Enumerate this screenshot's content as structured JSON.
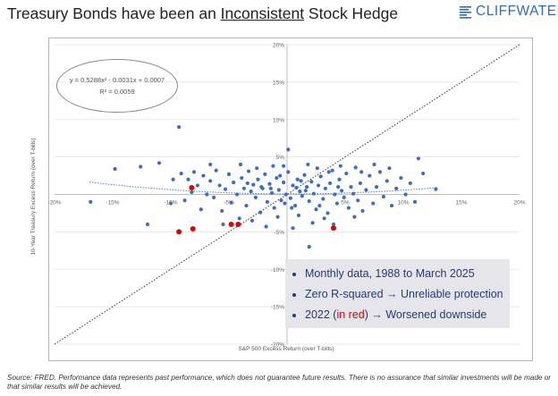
{
  "header": {
    "title_before": "Treasury Bonds have been an ",
    "title_underlined": "Inconsistent",
    "title_after": " Stock Hedge",
    "logo_text": "CLIFFWATER",
    "logo_color": "#2d6fb7"
  },
  "chart_data": {
    "type": "scatter",
    "title": "Treasury Bonds have been an Inconsistent Stock Hedge",
    "xlabel": "S&P 500 Excess Return (over T-bills)",
    "ylabel": "10-Year Treasury Excess Return (over T-bills)",
    "xlim": [
      -0.2,
      0.2
    ],
    "ylim": [
      -0.2,
      0.2
    ],
    "x_ticks": [
      -0.2,
      -0.15,
      -0.1,
      -0.05,
      0.05,
      0.1,
      0.15,
      0.2
    ],
    "x_tick_labels": [
      "-20%",
      "-15%",
      "-10%",
      "-5%",
      "5%",
      "10%",
      "15%",
      "20%"
    ],
    "y_ticks": [
      0.2,
      0.15,
      0.1,
      0.05,
      -0.05,
      -0.1,
      -0.15,
      -0.2
    ],
    "y_tick_labels": [
      "20%",
      "15%",
      "10%",
      "5%",
      "-5%",
      "-10%",
      "-15%",
      "-20%"
    ],
    "trendline": {
      "a": 0.5288,
      "b": -0.0031,
      "c": 0.0007
    },
    "equation": "y = 0.5288x² - 0.0031x + 0.0007",
    "r_squared_label": "R² = 0.0059",
    "series": [
      {
        "name": "Monthly data",
        "color": "#3b6dc4",
        "points": [
          [
            -0.169,
            -0.01
          ],
          [
            -0.148,
            0.034
          ],
          [
            -0.126,
            0.037
          ],
          [
            -0.11,
            0.042
          ],
          [
            -0.1,
            -0.012
          ],
          [
            -0.098,
            0.02
          ],
          [
            -0.093,
            0.09
          ],
          [
            -0.091,
            0.028
          ],
          [
            -0.088,
            -0.008
          ],
          [
            -0.085,
            0.02
          ],
          [
            -0.082,
            0.003
          ],
          [
            -0.08,
            0.03
          ],
          [
            -0.077,
            0.012
          ],
          [
            -0.074,
            -0.02
          ],
          [
            -0.072,
            0.025
          ],
          [
            -0.069,
            0.0
          ],
          [
            -0.066,
            0.018
          ],
          [
            -0.063,
            -0.004
          ],
          [
            -0.061,
            0.032
          ],
          [
            -0.058,
            0.012
          ],
          [
            -0.056,
            -0.022
          ],
          [
            -0.053,
            0.007
          ],
          [
            -0.05,
            0.027
          ],
          [
            -0.048,
            -0.011
          ],
          [
            -0.046,
            0.016
          ],
          [
            -0.043,
            0.0
          ],
          [
            -0.041,
            -0.032
          ],
          [
            -0.039,
            0.022
          ],
          [
            -0.037,
            0.008
          ],
          [
            -0.035,
            -0.015
          ],
          [
            -0.033,
            0.031
          ],
          [
            -0.031,
            0.004
          ],
          [
            -0.029,
            0.013
          ],
          [
            -0.027,
            -0.004
          ],
          [
            -0.025,
            0.02
          ],
          [
            -0.023,
            -0.024
          ],
          [
            -0.021,
            0.008
          ],
          [
            -0.019,
            0.027
          ],
          [
            -0.017,
            -0.01
          ],
          [
            -0.015,
            0.014
          ],
          [
            -0.013,
            0.002
          ],
          [
            -0.011,
            -0.018
          ],
          [
            -0.009,
            0.022
          ],
          [
            -0.007,
            0.006
          ],
          [
            -0.005,
            -0.008
          ],
          [
            -0.003,
            0.016
          ],
          [
            -0.001,
            0.0
          ],
          [
            0.001,
            0.03
          ],
          [
            0.003,
            -0.005
          ],
          [
            0.005,
            0.012
          ],
          [
            0.007,
            -0.015
          ],
          [
            0.009,
            0.02
          ],
          [
            0.011,
            0.004
          ],
          [
            0.013,
            -0.002
          ],
          [
            0.015,
            0.026
          ],
          [
            0.017,
            0.01
          ],
          [
            0.019,
            -0.009
          ],
          [
            0.021,
            0.017
          ],
          [
            0.023,
            0.001
          ],
          [
            0.025,
            -0.02
          ],
          [
            0.027,
            0.012
          ],
          [
            0.029,
            0.024
          ],
          [
            0.031,
            -0.006
          ],
          [
            0.033,
            0.008
          ],
          [
            0.035,
            -0.025
          ],
          [
            0.037,
            0.015
          ],
          [
            0.039,
            0.032
          ],
          [
            0.041,
            0.0
          ],
          [
            0.043,
            -0.012
          ],
          [
            0.045,
            0.02
          ],
          [
            0.047,
            0.005
          ],
          [
            0.049,
            -0.004
          ],
          [
            0.051,
            0.028
          ],
          [
            0.053,
            -0.018
          ],
          [
            0.055,
            0.01
          ],
          [
            0.057,
            0.001
          ],
          [
            0.059,
            0.036
          ],
          [
            0.061,
            -0.008
          ],
          [
            0.063,
            0.015
          ],
          [
            0.065,
            -0.022
          ],
          [
            0.068,
            0.006
          ],
          [
            0.071,
            0.025
          ],
          [
            0.074,
            -0.012
          ],
          [
            0.077,
            0.01
          ],
          [
            0.08,
            0.03
          ],
          [
            0.083,
            -0.003
          ],
          [
            0.086,
            0.018
          ],
          [
            0.09,
            -0.015
          ],
          [
            0.094,
            0.008
          ],
          [
            0.098,
            0.022
          ],
          [
            0.102,
            0.0
          ],
          [
            0.106,
            0.015
          ],
          [
            0.11,
            -0.01
          ],
          [
            0.113,
            0.048
          ],
          [
            0.117,
            0.028
          ],
          [
            0.128,
            0.007
          ],
          [
            0.001,
            0.06
          ],
          [
            -0.012,
            0.038
          ],
          [
            0.018,
            0.04
          ],
          [
            0.046,
            0.038
          ],
          [
            0.04,
            -0.04
          ],
          [
            0.005,
            -0.045
          ],
          [
            -0.03,
            -0.035
          ],
          [
            -0.055,
            -0.04
          ],
          [
            0.022,
            -0.038
          ],
          [
            0.058,
            -0.03
          ],
          [
            -0.018,
            -0.043
          ],
          [
            0.075,
            0.04
          ],
          [
            0.088,
            0.035
          ],
          [
            -0.066,
            0.04
          ],
          [
            0.032,
            -0.032
          ],
          [
            -0.003,
            0.038
          ],
          [
            0.01,
            -0.028
          ],
          [
            -0.008,
            -0.03
          ],
          [
            0.026,
            0.035
          ],
          [
            -0.04,
            0.04
          ],
          [
            0.064,
            0.03
          ],
          [
            -0.026,
            0.035
          ],
          [
            -0.12,
            -0.04
          ],
          [
            0.019,
            -0.07
          ],
          [
            0.036,
            0.03
          ],
          [
            0.012,
            0.018
          ],
          [
            -0.006,
            0.025
          ],
          [
            0.004,
            -0.018
          ],
          [
            0.016,
            0.005
          ],
          [
            -0.014,
            0.008
          ],
          [
            0.008,
            0.009
          ],
          [
            -0.002,
            -0.012
          ],
          [
            0.028,
            -0.015
          ],
          [
            -0.022,
            0.01
          ],
          [
            0.044,
            0.01
          ],
          [
            -0.034,
            0.015
          ]
        ]
      },
      {
        "name": "2022",
        "color": "#e00000",
        "points": [
          [
            -0.081,
            -0.046
          ],
          [
            -0.093,
            -0.05
          ],
          [
            -0.082,
            0.009
          ],
          [
            -0.042,
            -0.04
          ],
          [
            -0.048,
            -0.04
          ],
          [
            0.04,
            -0.045
          ]
        ]
      }
    ]
  },
  "notes": {
    "n1": "Monthly data, 1988 to March 2025",
    "n2": "Zero R-squared → Unreliable protection",
    "n3_prefix": "2022 (",
    "n3_red": "in red",
    "n3_suffix": ") → Worsened downside"
  },
  "source": "Source: FRED. Performance data represents past performance, which does not guarantee future results. There is no assurance that similar investments will be made or that similar results will be achieved."
}
